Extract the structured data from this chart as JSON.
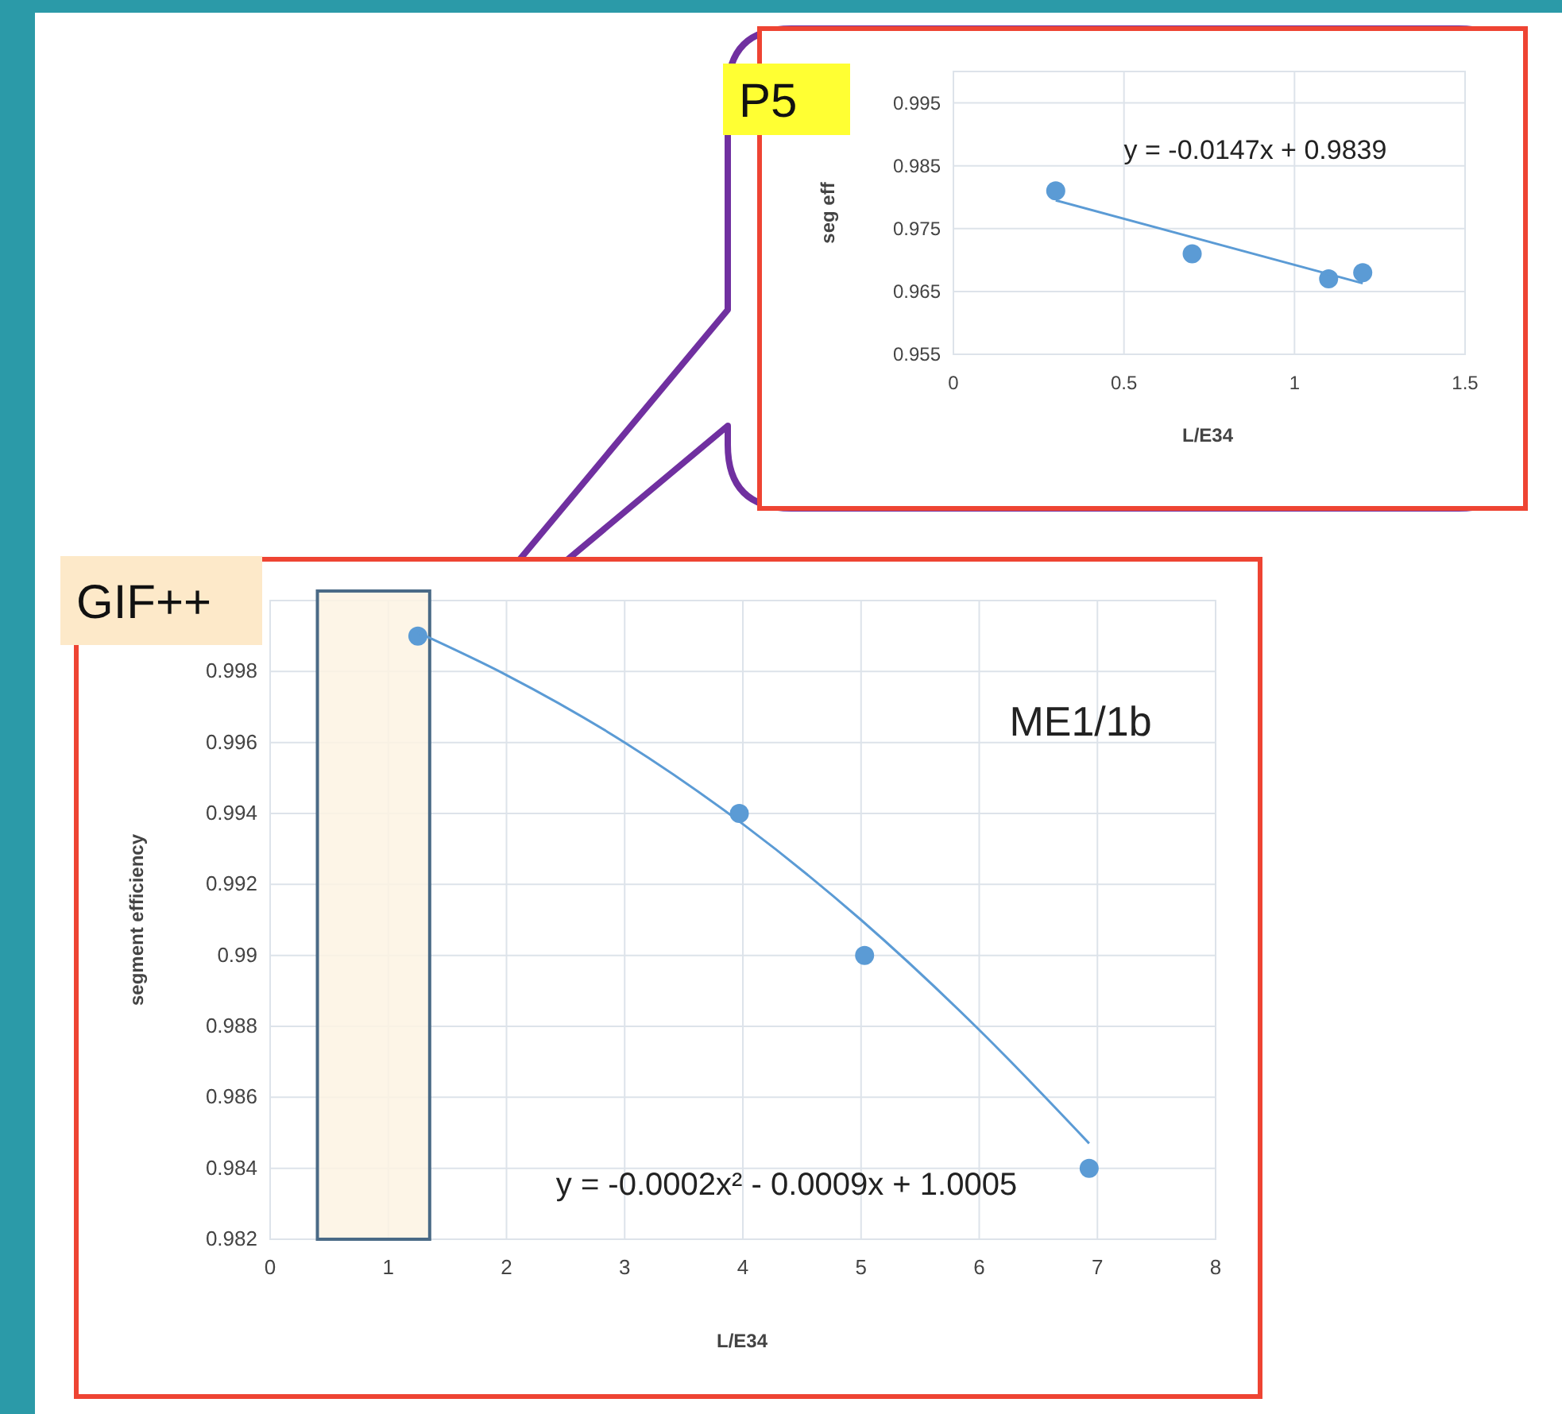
{
  "chart_data": [
    {
      "type": "scatter",
      "title": "P5",
      "xlabel": "L/E34",
      "ylabel": "seg eff",
      "annotations": [
        "y = -0.0147x + 0.9839"
      ],
      "xlim": [
        0,
        1.5
      ],
      "xticks": [
        0,
        0.5,
        1,
        1.5
      ],
      "ylim": [
        0.955,
        1.0
      ],
      "yticks": [
        0.955,
        0.965,
        0.975,
        0.985,
        0.995
      ],
      "grid": true,
      "series": [
        {
          "marker": "circle",
          "color": "#5b9bd5",
          "x": [
            0.3,
            0.7,
            1.1,
            1.2
          ],
          "values": [
            0.981,
            0.971,
            0.967,
            0.968
          ]
        },
        {
          "type": "line",
          "marker": "none",
          "color": "#5b9bd5",
          "x": [
            0.3,
            1.2
          ],
          "values": [
            0.9795,
            0.9663
          ]
        }
      ]
    },
    {
      "type": "scatter",
      "title": "GIF++",
      "xlabel": "L/E34",
      "ylabel": "segment efficiency",
      "annotations": [
        "ME1/1b",
        "y = -0.0002x² - 0.0009x + 1.0005"
      ],
      "xlim": [
        0,
        8
      ],
      "xticks": [
        0,
        1,
        2,
        3,
        4,
        5,
        6,
        7,
        8
      ],
      "ylim": [
        0.982,
        1.0
      ],
      "yticks": [
        0.982,
        0.984,
        0.986,
        0.988,
        0.99,
        0.992,
        0.994,
        0.996,
        0.998
      ],
      "grid": true,
      "bands": [
        {
          "axis": "x",
          "from": 0.4,
          "to": 1.35,
          "color": "#fdf3e3"
        }
      ],
      "series": [
        {
          "marker": "circle",
          "color": "#5b9bd5",
          "x": [
            1.25,
            3.97,
            5.03,
            6.93
          ],
          "values": [
            0.999,
            0.994,
            0.99,
            0.984
          ]
        },
        {
          "type": "line",
          "marker": "none",
          "color": "#5b9bd5",
          "x": [
            1.25,
            2,
            3,
            4,
            5,
            6,
            6.93
          ],
          "values": [
            0.9991,
            0.9979,
            0.996,
            0.9937,
            0.991,
            0.9879,
            0.9847
          ]
        }
      ]
    }
  ]
}
